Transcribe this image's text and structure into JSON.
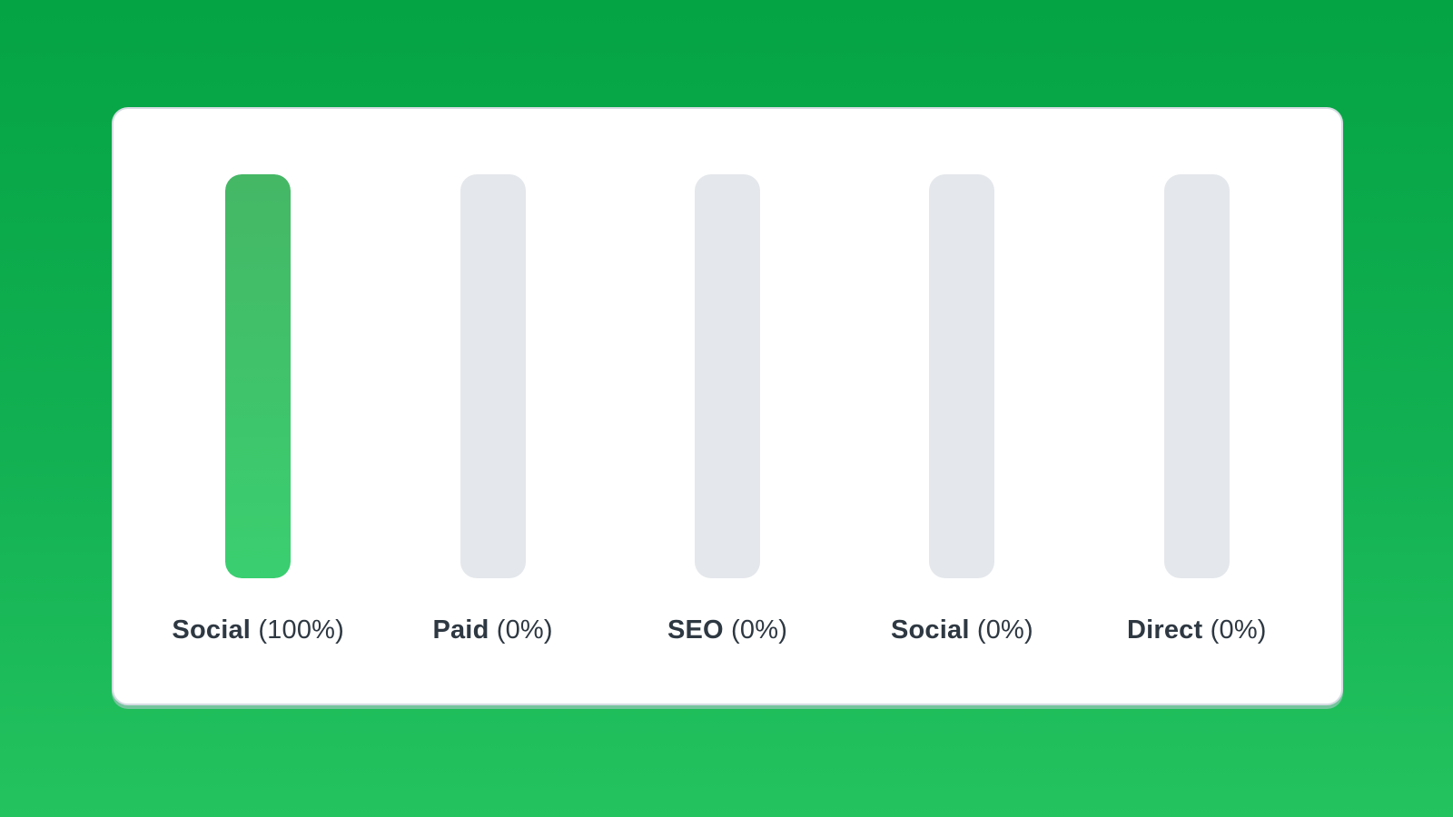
{
  "page": {
    "background_gradient": [
      "#04a343",
      "#24c35f"
    ]
  },
  "card": {
    "background": "#ffffff",
    "border_color": "#d6dce3",
    "shadow_color": "#becad5"
  },
  "chart_data": {
    "type": "bar",
    "orientation": "vertical",
    "categories": [
      "Social",
      "Paid",
      "SEO",
      "Social",
      "Direct"
    ],
    "values": [
      100,
      0,
      0,
      0,
      0
    ],
    "unit": "%",
    "ylim": [
      0,
      100
    ],
    "grid": false,
    "legend": false,
    "bar_fill_gradient": [
      "#45b765",
      "#3acf70"
    ],
    "bar_track_color": "#e4e7eb",
    "label_color": "#2e3842",
    "items": [
      {
        "name": "Social",
        "percent_label": "(100%)",
        "value": 100
      },
      {
        "name": "Paid",
        "percent_label": "(0%)",
        "value": 0
      },
      {
        "name": "SEO",
        "percent_label": "(0%)",
        "value": 0
      },
      {
        "name": "Social",
        "percent_label": "(0%)",
        "value": 0
      },
      {
        "name": "Direct",
        "percent_label": "(0%)",
        "value": 0
      }
    ]
  }
}
